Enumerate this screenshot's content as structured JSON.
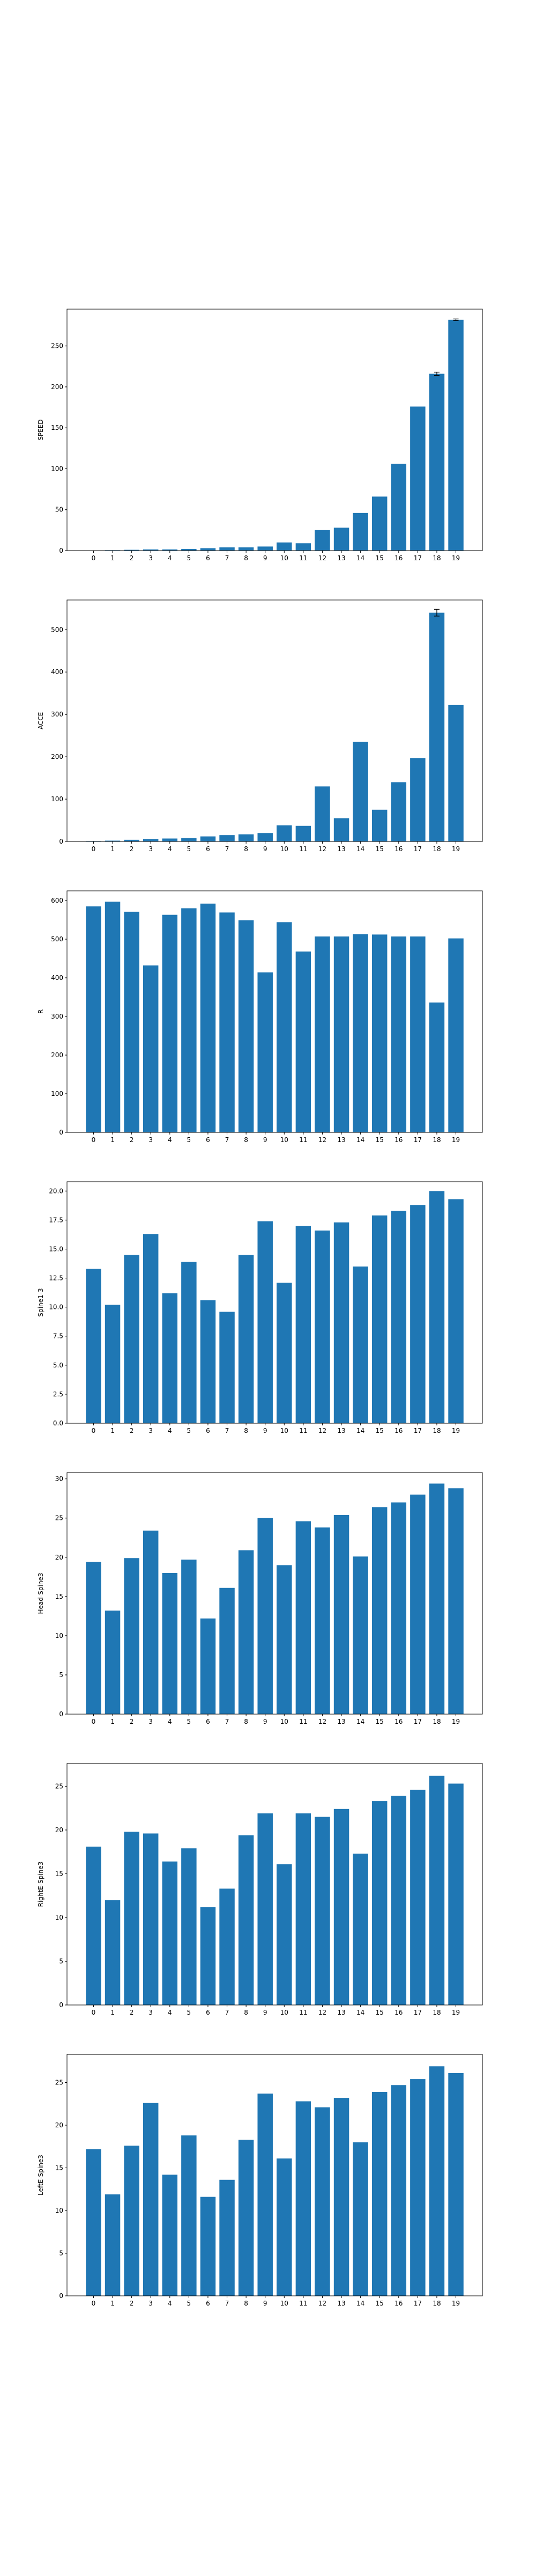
{
  "bar_color": "#1f77b4",
  "chart_data": [
    {
      "type": "bar",
      "ylabel": "SPEED",
      "categories": [
        "0",
        "1",
        "2",
        "3",
        "4",
        "5",
        "6",
        "7",
        "8",
        "9",
        "10",
        "11",
        "12",
        "13",
        "14",
        "15",
        "16",
        "17",
        "18",
        "19"
      ],
      "values": [
        0.3,
        0.5,
        1,
        1.5,
        1.5,
        2,
        3,
        4,
        4,
        5,
        10,
        9,
        25,
        28,
        46,
        66,
        106,
        176,
        216,
        282
      ],
      "errors": [
        0,
        0,
        0,
        0,
        0,
        0,
        0,
        0,
        0,
        0,
        0,
        0,
        0,
        0,
        0,
        0,
        0,
        0,
        2,
        1
      ],
      "ylim": [
        0,
        295
      ],
      "yticks": [
        0,
        50,
        100,
        150,
        200,
        250
      ],
      "grid": false
    },
    {
      "type": "bar",
      "ylabel": "ACCE",
      "categories": [
        "0",
        "1",
        "2",
        "3",
        "4",
        "5",
        "6",
        "7",
        "8",
        "9",
        "10",
        "11",
        "12",
        "13",
        "14",
        "15",
        "16",
        "17",
        "18",
        "19"
      ],
      "values": [
        1,
        2,
        4,
        6,
        7,
        8,
        12,
        15,
        17,
        20,
        38,
        37,
        130,
        55,
        235,
        75,
        140,
        197,
        540,
        322
      ],
      "errors": [
        0,
        0,
        0,
        0,
        0,
        0,
        0,
        0,
        0,
        0,
        0,
        0,
        0,
        0,
        0,
        0,
        0,
        0,
        8,
        0
      ],
      "ylim": [
        0,
        570
      ],
      "yticks": [
        0,
        100,
        200,
        300,
        400,
        500
      ],
      "grid": false
    },
    {
      "type": "bar",
      "ylabel": "R",
      "categories": [
        "0",
        "1",
        "2",
        "3",
        "4",
        "5",
        "6",
        "7",
        "8",
        "9",
        "10",
        "11",
        "12",
        "13",
        "14",
        "15",
        "16",
        "17",
        "18",
        "19"
      ],
      "values": [
        585,
        597,
        571,
        432,
        563,
        580,
        592,
        569,
        549,
        414,
        544,
        468,
        507,
        507,
        513,
        512,
        507,
        507,
        336,
        502
      ],
      "errors": [
        0,
        0,
        0,
        0,
        0,
        0,
        0,
        0,
        0,
        0,
        0,
        0,
        0,
        0,
        0,
        0,
        0,
        0,
        0,
        0
      ],
      "ylim": [
        0,
        625
      ],
      "yticks": [
        0,
        100,
        200,
        300,
        400,
        500,
        600
      ],
      "grid": false
    },
    {
      "type": "bar",
      "ylabel": "Spine1-3",
      "categories": [
        "0",
        "1",
        "2",
        "3",
        "4",
        "5",
        "6",
        "7",
        "8",
        "9",
        "10",
        "11",
        "12",
        "13",
        "14",
        "15",
        "16",
        "17",
        "18",
        "19"
      ],
      "values": [
        13.3,
        10.2,
        14.5,
        16.3,
        11.2,
        13.9,
        10.6,
        9.6,
        14.5,
        17.4,
        12.1,
        17.0,
        16.6,
        17.3,
        13.5,
        17.9,
        18.3,
        18.8,
        20.0,
        19.3
      ],
      "errors": [
        0,
        0,
        0,
        0,
        0,
        0,
        0,
        0,
        0,
        0,
        0,
        0,
        0,
        0,
        0,
        0,
        0,
        0,
        0,
        0
      ],
      "ylim": [
        0,
        20.8
      ],
      "yticks": [
        0.0,
        2.5,
        5.0,
        7.5,
        10.0,
        12.5,
        15.0,
        17.5,
        20.0
      ],
      "ytick_labels": [
        "0.0",
        "2.5",
        "5.0",
        "7.5",
        "10.0",
        "12.5",
        "15.0",
        "17.5",
        "20.0"
      ],
      "grid": false
    },
    {
      "type": "bar",
      "ylabel": "Head-Spine3",
      "categories": [
        "0",
        "1",
        "2",
        "3",
        "4",
        "5",
        "6",
        "7",
        "8",
        "9",
        "10",
        "11",
        "12",
        "13",
        "14",
        "15",
        "16",
        "17",
        "18",
        "19"
      ],
      "values": [
        19.4,
        13.2,
        19.9,
        23.4,
        18.0,
        19.7,
        12.2,
        16.1,
        20.9,
        25.0,
        19.0,
        24.6,
        23.8,
        25.4,
        20.1,
        26.4,
        27.0,
        28.0,
        29.4,
        28.8
      ],
      "errors": [
        0,
        0,
        0,
        0,
        0,
        0,
        0,
        0,
        0,
        0,
        0,
        0,
        0,
        0,
        0,
        0,
        0,
        0,
        0,
        0
      ],
      "ylim": [
        0,
        30.8
      ],
      "yticks": [
        0,
        5,
        10,
        15,
        20,
        25,
        30
      ],
      "grid": false
    },
    {
      "type": "bar",
      "ylabel": "RightE-Spine3",
      "categories": [
        "0",
        "1",
        "2",
        "3",
        "4",
        "5",
        "6",
        "7",
        "8",
        "9",
        "10",
        "11",
        "12",
        "13",
        "14",
        "15",
        "16",
        "17",
        "18",
        "19"
      ],
      "values": [
        18.1,
        12.0,
        19.8,
        19.6,
        16.4,
        17.9,
        11.2,
        13.3,
        19.4,
        21.9,
        16.1,
        21.9,
        21.5,
        22.4,
        17.3,
        23.3,
        23.9,
        24.6,
        26.2,
        25.3
      ],
      "errors": [
        0,
        0,
        0,
        0,
        0,
        0,
        0,
        0,
        0,
        0,
        0,
        0,
        0,
        0,
        0,
        0,
        0,
        0,
        0,
        0
      ],
      "ylim": [
        0,
        27.6
      ],
      "yticks": [
        0,
        5,
        10,
        15,
        20,
        25
      ],
      "grid": false
    },
    {
      "type": "bar",
      "ylabel": "LeftE-Spine3",
      "categories": [
        "0",
        "1",
        "2",
        "3",
        "4",
        "5",
        "6",
        "7",
        "8",
        "9",
        "10",
        "11",
        "12",
        "13",
        "14",
        "15",
        "16",
        "17",
        "18",
        "19"
      ],
      "values": [
        17.2,
        11.9,
        17.6,
        22.6,
        14.2,
        18.8,
        11.6,
        13.6,
        18.3,
        23.7,
        16.1,
        22.8,
        22.1,
        23.2,
        18.0,
        23.9,
        24.7,
        25.4,
        26.9,
        26.1
      ],
      "errors": [
        0,
        0,
        0,
        0,
        0,
        0,
        0,
        0,
        0,
        0,
        0,
        0,
        0,
        0,
        0,
        0,
        0,
        0,
        0,
        0
      ],
      "ylim": [
        0,
        28.3
      ],
      "yticks": [
        0,
        5,
        10,
        15,
        20,
        25
      ],
      "grid": false
    }
  ]
}
